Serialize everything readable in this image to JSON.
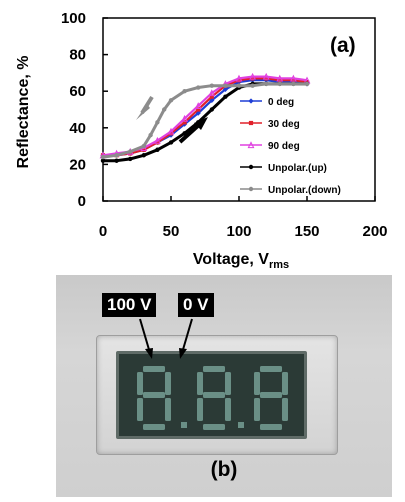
{
  "panel_a_label": "(a)",
  "panel_b_label": "(b)",
  "photo": {
    "label_left": "100 V",
    "label_right": "0 V"
  },
  "colors": {
    "0 deg": "#1f3fd6",
    "30 deg": "#e0202a",
    "90 deg": "#e040e0",
    "Unpolar.(up)": "#000000",
    "Unpolar.(down)": "#8c8c8c",
    "lcd": "#2b3a36",
    "segment": "#6a8f86"
  },
  "chart_data": {
    "type": "line",
    "title": "",
    "xlabel": "Voltage, V",
    "xlabel_sub": "rms",
    "ylabel": "Reflectance, %",
    "xlim": [
      0,
      200
    ],
    "ylim": [
      0,
      100
    ],
    "xticks": [
      "0",
      "50",
      "100",
      "150",
      "200"
    ],
    "yticks": [
      "0",
      "20",
      "40",
      "60",
      "80",
      "100"
    ],
    "grid": false,
    "legend_position": "lower-right inside",
    "series": [
      {
        "name": "0 deg",
        "marker": "diamond",
        "x": [
          0,
          10,
          20,
          30,
          40,
          50,
          60,
          70,
          80,
          90,
          100,
          110,
          120,
          130,
          140,
          150
        ],
        "y": [
          25,
          25,
          26,
          28,
          32,
          36,
          42,
          48,
          55,
          61,
          65,
          66,
          66,
          65,
          65,
          64
        ]
      },
      {
        "name": "30 deg",
        "marker": "square",
        "x": [
          0,
          10,
          20,
          30,
          40,
          50,
          60,
          70,
          80,
          90,
          100,
          110,
          120,
          130,
          140,
          150
        ],
        "y": [
          25,
          25,
          26,
          28,
          32,
          37,
          43,
          50,
          57,
          63,
          66,
          67,
          67,
          66,
          66,
          65
        ]
      },
      {
        "name": "90 deg",
        "marker": "triangle",
        "x": [
          0,
          10,
          20,
          30,
          40,
          50,
          60,
          70,
          80,
          90,
          100,
          110,
          120,
          130,
          140,
          150
        ],
        "y": [
          25,
          26,
          27,
          29,
          33,
          38,
          45,
          52,
          59,
          64,
          67,
          68,
          68,
          67,
          67,
          66
        ]
      },
      {
        "name": "Unpolar.(up)",
        "marker": "circle",
        "x": [
          0,
          10,
          20,
          30,
          40,
          50,
          60,
          70,
          80,
          90,
          100,
          110,
          120,
          130,
          140,
          150
        ],
        "y": [
          22,
          22,
          23,
          25,
          28,
          32,
          37,
          43,
          50,
          57,
          62,
          64,
          64,
          64,
          64,
          64
        ]
      },
      {
        "name": "Unpolar.(down)",
        "marker": "circle",
        "x": [
          150,
          140,
          130,
          120,
          110,
          100,
          90,
          80,
          70,
          60,
          50,
          45,
          40,
          35,
          30,
          20,
          10,
          0
        ],
        "y": [
          64,
          64,
          64,
          64,
          63,
          63,
          63,
          63,
          62,
          60,
          55,
          50,
          43,
          36,
          30,
          27,
          25,
          24
        ]
      }
    ]
  }
}
